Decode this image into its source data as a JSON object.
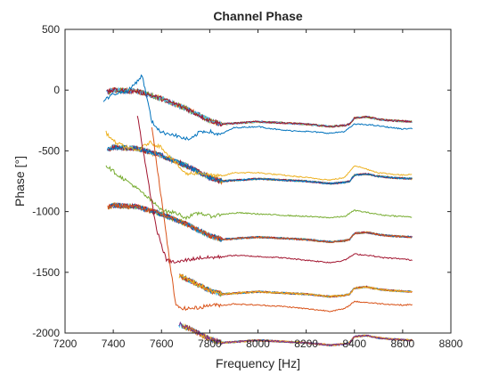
{
  "chart_data": {
    "type": "line",
    "title": "Channel Phase",
    "xlabel": "Frequency [Hz]",
    "ylabel": "Phase [°]",
    "xlim": [
      7200,
      8800
    ],
    "ylim": [
      -2000,
      500
    ],
    "xticks": [
      "7200",
      "7400",
      "7600",
      "7800",
      "8000",
      "8200",
      "8400",
      "8600",
      "8800"
    ],
    "yticks": [
      "500",
      "0",
      "-500",
      "-1000",
      "-1500",
      "-2000"
    ],
    "grid": false,
    "legend": "none",
    "colors": [
      "#0072BD",
      "#D95319",
      "#EDB120",
      "#7E2F8E",
      "#77AC30",
      "#4DBEEE",
      "#A2142F"
    ],
    "x_range": [
      7360,
      8640
    ],
    "bands": [
      {
        "level": 0,
        "left_edge_x": 7370
      },
      {
        "level": -470,
        "left_edge_x": 7370
      },
      {
        "level": -950,
        "left_edge_x": 7370
      },
      {
        "level": -1400,
        "left_edge_x": 7370
      },
      {
        "level": -1800,
        "left_edge_x": 7370
      }
    ],
    "band_profile": {
      "x": [
        7360,
        7400,
        7500,
        7600,
        7700,
        7800,
        7850,
        8000,
        8100,
        8200,
        8300,
        8360,
        8380,
        8400,
        8450,
        8500,
        8550,
        8640
      ],
      "offset": [
        -80,
        -50,
        -60,
        -120,
        -200,
        -300,
        -330,
        -310,
        -320,
        -330,
        -350,
        -340,
        -330,
        -280,
        -270,
        -290,
        -300,
        -310
      ]
    },
    "series": [
      {
        "path": [
          [
            7360,
            -90
          ],
          [
            7400,
            -30
          ],
          [
            7460,
            -10
          ],
          [
            7520,
            120
          ],
          [
            7560,
            -260
          ],
          [
            7600,
            -350
          ],
          [
            7640,
            -360
          ],
          [
            7680,
            -390
          ],
          [
            7720,
            -410
          ],
          [
            7760,
            -340
          ],
          [
            7800,
            -340
          ],
          [
            7840,
            -370
          ],
          [
            7900,
            -310
          ],
          [
            8000,
            -300
          ],
          [
            8100,
            -330
          ],
          [
            8200,
            -340
          ],
          [
            8300,
            -355
          ],
          [
            8360,
            -340
          ],
          [
            8400,
            -280
          ],
          [
            8460,
            -285
          ],
          [
            8520,
            -300
          ],
          [
            8600,
            -320
          ],
          [
            8640,
            -315
          ]
        ]
      },
      {
        "path": [
          [
            7370,
            -350
          ],
          [
            7400,
            -420
          ],
          [
            7450,
            -470
          ],
          [
            7500,
            -500
          ],
          [
            7550,
            -430
          ],
          [
            7600,
            -470
          ],
          [
            7640,
            -560
          ],
          [
            7700,
            -690
          ],
          [
            7760,
            -680
          ],
          [
            7800,
            -700
          ],
          [
            7850,
            -710
          ],
          [
            7900,
            -680
          ],
          [
            8000,
            -680
          ],
          [
            8100,
            -700
          ],
          [
            8200,
            -720
          ],
          [
            8300,
            -740
          ],
          [
            8360,
            -720
          ],
          [
            8400,
            -620
          ],
          [
            8450,
            -650
          ],
          [
            8500,
            -680
          ],
          [
            8600,
            -700
          ],
          [
            8640,
            -690
          ]
        ]
      },
      {
        "path": [
          [
            7370,
            -620
          ],
          [
            7420,
            -700
          ],
          [
            7480,
            -780
          ],
          [
            7540,
            -880
          ],
          [
            7580,
            -950
          ],
          [
            7620,
            -1000
          ],
          [
            7660,
            -1010
          ],
          [
            7700,
            -1050
          ],
          [
            7760,
            -1010
          ],
          [
            7800,
            -1040
          ],
          [
            7860,
            -1020
          ],
          [
            7920,
            -1010
          ],
          [
            8000,
            -1020
          ],
          [
            8100,
            -1030
          ],
          [
            8200,
            -1040
          ],
          [
            8300,
            -1050
          ],
          [
            8360,
            -1040
          ],
          [
            8400,
            -990
          ],
          [
            8460,
            -1010
          ],
          [
            8520,
            -1030
          ],
          [
            8600,
            -1040
          ],
          [
            8640,
            -1045
          ]
        ]
      },
      {
        "path": [
          [
            7500,
            -200
          ],
          [
            7540,
            -700
          ],
          [
            7580,
            -1150
          ],
          [
            7620,
            -1400
          ],
          [
            7660,
            -1420
          ],
          [
            7700,
            -1400
          ],
          [
            7760,
            -1380
          ],
          [
            7800,
            -1380
          ],
          [
            7860,
            -1370
          ],
          [
            7900,
            -1360
          ],
          [
            8000,
            -1370
          ],
          [
            8100,
            -1380
          ],
          [
            8200,
            -1400
          ],
          [
            8300,
            -1420
          ],
          [
            8360,
            -1400
          ],
          [
            8400,
            -1350
          ],
          [
            8460,
            -1360
          ],
          [
            8520,
            -1380
          ],
          [
            8600,
            -1390
          ],
          [
            8640,
            -1400
          ]
        ]
      },
      {
        "path": [
          [
            7560,
            -300
          ],
          [
            7600,
            -900
          ],
          [
            7640,
            -1500
          ],
          [
            7660,
            -1780
          ],
          [
            7700,
            -1800
          ],
          [
            7760,
            -1790
          ],
          [
            7800,
            -1770
          ],
          [
            7860,
            -1770
          ],
          [
            7900,
            -1760
          ],
          [
            8000,
            -1770
          ],
          [
            8100,
            -1780
          ],
          [
            8200,
            -1800
          ],
          [
            8300,
            -1820
          ],
          [
            8360,
            -1800
          ],
          [
            8400,
            -1740
          ],
          [
            8460,
            -1750
          ],
          [
            8520,
            -1760
          ],
          [
            8600,
            -1770
          ],
          [
            8640,
            -1765
          ]
        ]
      }
    ]
  }
}
